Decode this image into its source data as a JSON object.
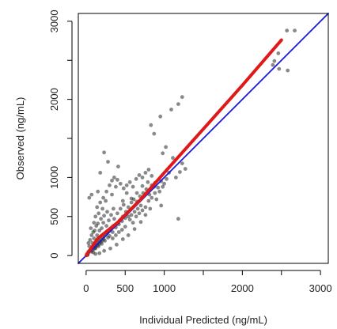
{
  "chart_data": {
    "type": "scatter",
    "xlabel": "Individual Predicted (ng/mL)",
    "ylabel": "Observed (ng/mL)",
    "xlim": [
      -100,
      3100
    ],
    "ylim": [
      -100,
      3100
    ],
    "x_ticks": [
      0,
      500,
      1000,
      2000,
      3000
    ],
    "x_tick_labels": [
      "0",
      "500",
      "1000",
      "2000",
      "3000"
    ],
    "x_minor_ticks": [
      1500,
      2500
    ],
    "y_ticks": [
      0,
      500,
      1000,
      2000,
      3000
    ],
    "y_tick_labels": [
      "0",
      "500",
      "1000",
      "2000",
      "3000"
    ],
    "y_minor_ticks": [
      1500,
      2500
    ],
    "grid": false,
    "points": [
      [
        2410,
        2490
      ],
      [
        2390,
        2440
      ],
      [
        2470,
        2390
      ],
      [
        2580,
        2370
      ],
      [
        2570,
        2880
      ],
      [
        2670,
        2880
      ],
      [
        2460,
        2590
      ],
      [
        1180,
        1940
      ],
      [
        1090,
        1870
      ],
      [
        1230,
        2030
      ],
      [
        830,
        1670
      ],
      [
        950,
        1780
      ],
      [
        870,
        1560
      ],
      [
        1020,
        1390
      ],
      [
        980,
        1310
      ],
      [
        1110,
        1250
      ],
      [
        1230,
        1180
      ],
      [
        1270,
        1110
      ],
      [
        1200,
        1070
      ],
      [
        1180,
        470
      ],
      [
        960,
        640
      ],
      [
        870,
        880
      ],
      [
        1030,
        980
      ],
      [
        1150,
        1000
      ],
      [
        1060,
        1060
      ],
      [
        230,
        1320
      ],
      [
        180,
        1060
      ],
      [
        280,
        1200
      ],
      [
        410,
        1140
      ],
      [
        150,
        820
      ],
      [
        70,
        780
      ],
      [
        40,
        740
      ],
      [
        380,
        880
      ],
      [
        330,
        780
      ],
      [
        250,
        700
      ],
      [
        520,
        800
      ],
      [
        470,
        700
      ],
      [
        350,
        600
      ],
      [
        580,
        730
      ],
      [
        650,
        800
      ],
      [
        720,
        890
      ],
      [
        790,
        940
      ],
      [
        840,
        1020
      ],
      [
        700,
        430
      ],
      [
        620,
        340
      ],
      [
        540,
        260
      ],
      [
        470,
        210
      ],
      [
        390,
        140
      ],
      [
        310,
        90
      ],
      [
        230,
        60
      ],
      [
        170,
        30
      ],
      [
        120,
        20
      ],
      [
        90,
        40
      ],
      [
        60,
        80
      ],
      [
        30,
        50
      ],
      [
        10,
        20
      ],
      [
        40,
        120
      ],
      [
        80,
        160
      ],
      [
        100,
        220
      ],
      [
        140,
        260
      ],
      [
        170,
        320
      ],
      [
        200,
        350
      ],
      [
        220,
        420
      ],
      [
        260,
        380
      ],
      [
        290,
        450
      ],
      [
        320,
        520
      ],
      [
        360,
        470
      ],
      [
        400,
        540
      ],
      [
        440,
        600
      ],
      [
        480,
        650
      ],
      [
        510,
        560
      ],
      [
        540,
        620
      ],
      [
        580,
        680
      ],
      [
        610,
        720
      ],
      [
        650,
        690
      ],
      [
        690,
        760
      ],
      [
        730,
        800
      ],
      [
        770,
        850
      ],
      [
        810,
        780
      ],
      [
        840,
        900
      ],
      [
        880,
        930
      ],
      [
        920,
        870
      ],
      [
        960,
        950
      ],
      [
        50,
        200
      ],
      [
        90,
        300
      ],
      [
        130,
        380
      ],
      [
        70,
        260
      ],
      [
        110,
        320
      ],
      [
        150,
        410
      ],
      [
        190,
        470
      ],
      [
        230,
        510
      ],
      [
        270,
        560
      ],
      [
        210,
        600
      ],
      [
        160,
        540
      ],
      [
        120,
        500
      ],
      [
        260,
        300
      ],
      [
        300,
        330
      ],
      [
        340,
        300
      ],
      [
        380,
        360
      ],
      [
        420,
        400
      ],
      [
        460,
        440
      ],
      [
        500,
        480
      ],
      [
        540,
        500
      ],
      [
        580,
        520
      ],
      [
        620,
        560
      ],
      [
        660,
        600
      ],
      [
        700,
        640
      ],
      [
        300,
        250
      ],
      [
        340,
        220
      ],
      [
        380,
        260
      ],
      [
        420,
        300
      ],
      [
        460,
        330
      ],
      [
        500,
        370
      ],
      [
        200,
        150
      ],
      [
        240,
        190
      ],
      [
        280,
        230
      ],
      [
        160,
        120
      ],
      [
        120,
        90
      ],
      [
        80,
        110
      ],
      [
        30,
        160
      ],
      [
        60,
        350
      ],
      [
        100,
        420
      ],
      [
        140,
        620
      ],
      [
        180,
        680
      ],
      [
        220,
        740
      ],
      [
        260,
        820
      ],
      [
        300,
        900
      ],
      [
        330,
        960
      ],
      [
        360,
        1000
      ],
      [
        400,
        970
      ],
      [
        440,
        920
      ],
      [
        480,
        860
      ],
      [
        520,
        900
      ],
      [
        560,
        940
      ],
      [
        600,
        880
      ],
      [
        640,
        980
      ],
      [
        680,
        1030
      ],
      [
        720,
        1000
      ],
      [
        760,
        1060
      ],
      [
        800,
        1100
      ],
      [
        560,
        460
      ],
      [
        600,
        420
      ],
      [
        640,
        500
      ],
      [
        680,
        540
      ],
      [
        720,
        580
      ],
      [
        760,
        620
      ],
      [
        800,
        700
      ],
      [
        840,
        740
      ],
      [
        880,
        800
      ],
      [
        900,
        720
      ],
      [
        940,
        820
      ],
      [
        980,
        880
      ],
      [
        1000,
        920
      ],
      [
        760,
        520
      ],
      [
        820,
        600
      ],
      [
        450,
        470
      ],
      [
        470,
        500
      ],
      [
        430,
        450
      ],
      [
        410,
        420
      ],
      [
        390,
        400
      ],
      [
        370,
        390
      ],
      [
        350,
        380
      ],
      [
        330,
        360
      ],
      [
        310,
        340
      ],
      [
        290,
        320
      ],
      [
        270,
        290
      ],
      [
        250,
        270
      ],
      [
        230,
        250
      ],
      [
        210,
        230
      ],
      [
        190,
        210
      ],
      [
        170,
        190
      ],
      [
        150,
        170
      ],
      [
        130,
        150
      ],
      [
        110,
        130
      ],
      [
        90,
        110
      ],
      [
        70,
        90
      ],
      [
        50,
        70
      ],
      [
        30,
        40
      ],
      [
        20,
        10
      ],
      [
        15,
        5
      ],
      [
        25,
        30
      ],
      [
        45,
        60
      ],
      [
        65,
        50
      ],
      [
        85,
        70
      ],
      [
        105,
        90
      ],
      [
        125,
        110
      ],
      [
        145,
        130
      ],
      [
        165,
        150
      ],
      [
        185,
        170
      ],
      [
        205,
        190
      ],
      [
        225,
        210
      ]
    ],
    "point_color": "rgba(40,40,40,0.55)",
    "lines": [
      {
        "role": "identity",
        "color": "#1a1adb",
        "x": [
          -100,
          3100
        ],
        "y": [
          -100,
          3100
        ]
      },
      {
        "role": "trend",
        "color": "#e01818",
        "x": [
          0,
          150,
          400,
          700,
          1000,
          1500,
          2000,
          2500
        ],
        "y": [
          0,
          220,
          420,
          720,
          1060,
          1620,
          2180,
          2760
        ]
      }
    ]
  }
}
